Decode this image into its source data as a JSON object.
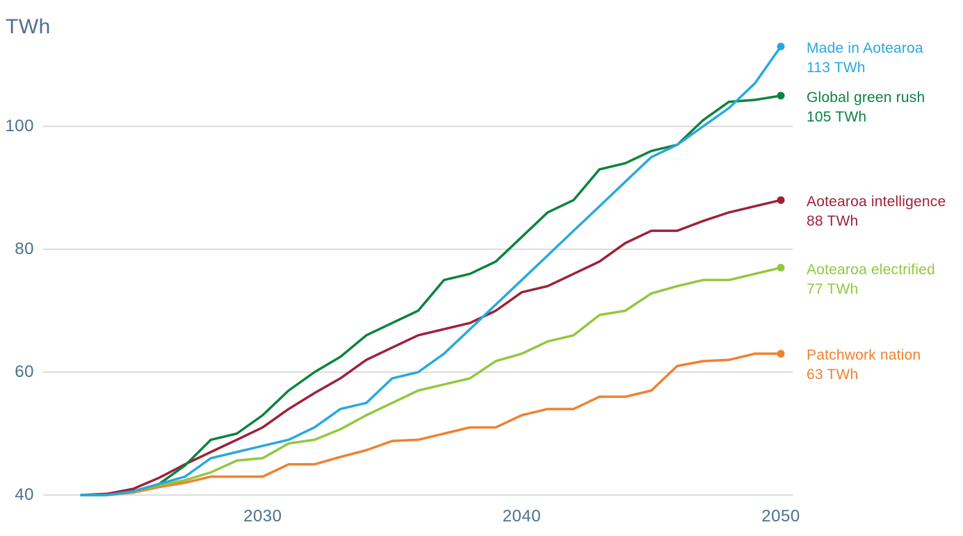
{
  "chart_data": {
    "type": "line",
    "y_axis_title": "TWh",
    "xlabel": "",
    "ylabel": "TWh",
    "ylim": [
      40,
      115
    ],
    "grid": "horizontal",
    "legend_position": "right-of-line-ends",
    "gridline_color": "#dcdcdc",
    "axis_text_color": "#4d7090",
    "background_color": "#ffffff",
    "years": [
      2023,
      2024,
      2025,
      2026,
      2027,
      2028,
      2029,
      2030,
      2031,
      2032,
      2033,
      2034,
      2035,
      2036,
      2037,
      2038,
      2039,
      2040,
      2041,
      2042,
      2043,
      2044,
      2045,
      2046,
      2047,
      2048,
      2049,
      2050
    ],
    "y_ticks": [
      100,
      80,
      60,
      40
    ],
    "x_ticks": [
      2030,
      2040,
      2050
    ],
    "series": [
      {
        "name": "Made in Aotearoa",
        "end_label": "113 TWh",
        "final_value": 113,
        "color": "#29a8e0",
        "values": [
          40,
          40,
          40.6,
          41.8,
          43,
          46,
          47,
          48,
          49,
          51,
          54,
          55,
          59,
          60,
          63,
          67,
          71,
          75,
          79,
          83,
          87,
          91,
          95,
          97,
          100,
          103,
          107,
          113
        ]
      },
      {
        "name": "Global green rush",
        "end_label": "105 TWh",
        "final_value": 105,
        "color": "#0c8340",
        "values": [
          40,
          40,
          40.6,
          41.8,
          44.8,
          49,
          50,
          53,
          57,
          60,
          62.5,
          66,
          68,
          70,
          75,
          76,
          78,
          82,
          86,
          88,
          93,
          94,
          96,
          97,
          101,
          104,
          104.3,
          105
        ]
      },
      {
        "name": "Aotearoa intelligence",
        "end_label": "88 TWh",
        "final_value": 88,
        "color": "#9e2139",
        "values": [
          40,
          40.2,
          41,
          42.8,
          45,
          47,
          49,
          51,
          54,
          56.6,
          59,
          62,
          64,
          66,
          67,
          68,
          70,
          73,
          74,
          76,
          78,
          81,
          83,
          83,
          84.6,
          86,
          87,
          88
        ]
      },
      {
        "name": "Aotearoa electrified",
        "end_label": "77 TWh",
        "final_value": 77,
        "color": "#91c83e",
        "values": [
          40,
          40,
          40.5,
          41.6,
          42.4,
          43.7,
          45.6,
          46,
          48.4,
          49,
          50.7,
          53,
          55,
          57,
          58,
          59,
          61.8,
          63,
          65,
          66,
          69.3,
          70,
          72.8,
          74,
          75,
          75,
          76,
          77
        ]
      },
      {
        "name": "Patchwork nation",
        "end_label": "63 TWh",
        "final_value": 63,
        "color": "#f0812f",
        "values": [
          40,
          40,
          40.4,
          41.3,
          42,
          43,
          43,
          43,
          45,
          45,
          46.2,
          47.3,
          48.8,
          49,
          50,
          51,
          51,
          53,
          54,
          54,
          56,
          56,
          57,
          61,
          61.8,
          62,
          63,
          63
        ]
      }
    ]
  }
}
